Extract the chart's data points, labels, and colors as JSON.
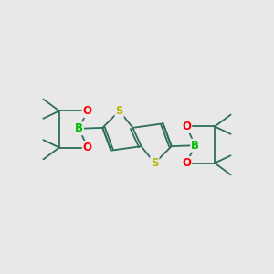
{
  "bg_color": "#e8e8e8",
  "bond_color": "#2d6e5e",
  "bond_width": 1.3,
  "atom_colors": {
    "S": "#b8b800",
    "B": "#00bb00",
    "O": "#ff0000",
    "C": "#2d6e5e"
  },
  "font_size": 8.5,
  "figsize": [
    3.0,
    3.0
  ],
  "dpi": 100,
  "xlim": [
    -3.2,
    3.2
  ],
  "ylim": [
    -1.6,
    1.6
  ]
}
